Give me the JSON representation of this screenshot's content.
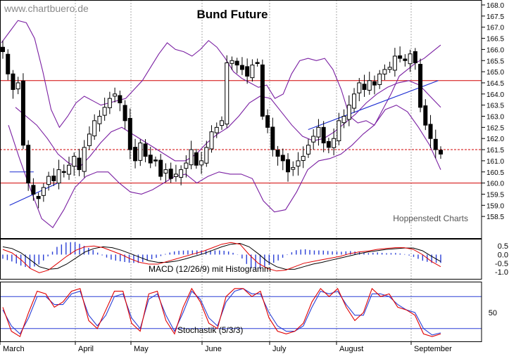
{
  "watermark": "www.chartbuero.de",
  "credit": "Hoppenstedt Charts",
  "chart_data": [
    {
      "type": "candlestick",
      "title": "Bund Future",
      "x_labels": [
        "March",
        "April",
        "May",
        "June",
        "July",
        "August",
        "September"
      ],
      "ylim": [
        158.0,
        168.0
      ],
      "y_ticks": [
        "158.5",
        "159.0",
        "159.5",
        "160.0",
        "160.5",
        "161.0",
        "161.5",
        "162.0",
        "162.5",
        "163.0",
        "163.5",
        "164.0",
        "164.5",
        "165.0",
        "165.5",
        "166.0",
        "166.5",
        "167.0",
        "167.5",
        "168.0"
      ],
      "close": [
        165.9,
        164.9,
        164.2,
        164.5,
        161.7,
        160.0,
        159.5,
        159.3,
        159.8,
        160.3,
        160.1,
        160.6,
        160.5,
        160.8,
        161.2,
        160.6,
        161.6,
        162.2,
        162.8,
        163.0,
        163.4,
        163.8,
        164.0,
        163.6,
        162.8,
        161.5,
        161.0,
        161.8,
        161.2,
        160.9,
        161.0,
        160.3,
        160.6,
        160.2,
        160.4,
        160.6,
        160.9,
        161.5,
        160.8,
        161.0,
        161.6,
        162.3,
        162.5,
        162.8,
        165.4,
        165.5,
        165.3,
        165.1,
        164.8,
        165.3,
        165.4,
        163.0,
        162.5,
        161.5,
        161.2,
        161.0,
        160.5,
        160.7,
        161.0,
        161.2,
        161.7,
        162.1,
        162.5,
        161.8,
        161.6,
        162.0,
        162.8,
        163.0,
        163.5,
        164.0,
        164.5,
        164.2,
        164.6,
        164.4,
        164.9,
        165.1,
        165.2,
        165.7,
        165.6,
        165.5,
        165.8,
        165.4,
        163.4,
        162.6,
        162.0,
        161.5,
        161.3
      ],
      "upper_band_approx": [
        166.3,
        166.8,
        167.3,
        167.2,
        166.5,
        165.0,
        163.3,
        162.5,
        163.0,
        163.6,
        163.9,
        163.7,
        163.5,
        163.6,
        163.7,
        163.8,
        164.2,
        164.6,
        165.2,
        165.8,
        166.3,
        166.0,
        165.9,
        165.7,
        166.0,
        166.4,
        166.1,
        165.6,
        165.0,
        164.7,
        164.5,
        164.3,
        164.4,
        163.8,
        164.0,
        164.9,
        165.5,
        165.6,
        165.5,
        165.6,
        165.1,
        164.2,
        163.0,
        162.7,
        162.8,
        162.6,
        163.3,
        164.0,
        164.8,
        165.1,
        165.4,
        165.6,
        165.9,
        166.2
      ],
      "middle_band_approx": [
        163.4,
        163.0,
        162.6,
        162.0,
        161.3,
        160.9,
        160.7,
        161.2,
        161.8,
        162.3,
        162.5,
        162.2,
        161.9,
        161.6,
        161.3,
        161.0,
        161.0,
        161.3,
        161.8,
        162.2,
        162.5,
        163.0,
        163.6,
        163.9,
        163.8,
        163.2,
        162.6,
        162.1,
        161.9,
        162.0,
        162.3,
        162.7,
        163.1,
        163.6,
        164.0,
        164.3,
        164.5,
        164.6,
        164.4,
        163.9,
        163.4
      ],
      "lower_band_approx": [
        162.6,
        161.1,
        159.7,
        158.4,
        158.0,
        158.8,
        159.8,
        160.3,
        160.5,
        160.5,
        160.0,
        159.6,
        159.5,
        159.7,
        160.0,
        160.3,
        160.4,
        160.0,
        160.3,
        160.5,
        160.4,
        160.4,
        160.2,
        159.2,
        158.7,
        158.8,
        159.6,
        160.6,
        161.0,
        161.1,
        161.3,
        161.7,
        162.2,
        162.6,
        163.3,
        163.5,
        163.2,
        162.5,
        161.7,
        160.6
      ],
      "horizontal_lines": [
        {
          "value": 164.6,
          "style": "solid"
        },
        {
          "value": 161.5,
          "style": "dashed"
        },
        {
          "value": 160.0,
          "style": "solid"
        }
      ],
      "trend_lines": [
        {
          "from": [
            0.02,
            160.5
          ],
          "to": [
            0.07,
            160.5
          ]
        },
        {
          "from": [
            0.02,
            159.0
          ],
          "to": [
            0.12,
            160.0
          ]
        },
        {
          "from": [
            0.64,
            162.4
          ],
          "to": [
            0.91,
            164.6
          ]
        }
      ]
    },
    {
      "type": "line",
      "label": "MACD (12/26/9) mit Histogramm",
      "y_ticks": [
        "0.5",
        "0.0",
        "-0.5",
        "-1.0"
      ],
      "ylim": [
        -1.2,
        0.75
      ],
      "macd": [
        0.3,
        0.1,
        -0.3,
        -0.8,
        -1.05,
        -0.9,
        -0.5,
        -0.1,
        0.25,
        0.45,
        0.5,
        0.4,
        0.2,
        0.0,
        -0.25,
        -0.45,
        -0.55,
        -0.55,
        -0.4,
        -0.25,
        -0.1,
        0.05,
        0.2,
        0.4,
        0.6,
        0.7,
        0.6,
        0.0,
        -0.5,
        -0.8,
        -0.95,
        -0.9,
        -0.7,
        -0.5,
        -0.4,
        -0.3,
        -0.2,
        -0.1,
        0.05,
        0.15,
        0.2,
        0.3,
        0.35,
        0.4,
        0.4,
        0.3,
        0.0,
        -0.4,
        -0.7
      ],
      "signal": [
        0.45,
        0.35,
        0.1,
        -0.3,
        -0.7,
        -0.85,
        -0.8,
        -0.55,
        -0.2,
        0.15,
        0.35,
        0.45,
        0.4,
        0.25,
        0.05,
        -0.15,
        -0.35,
        -0.45,
        -0.45,
        -0.38,
        -0.25,
        -0.1,
        0.05,
        0.25,
        0.45,
        0.6,
        0.65,
        0.45,
        0.05,
        -0.4,
        -0.7,
        -0.85,
        -0.85,
        -0.7,
        -0.55,
        -0.45,
        -0.32,
        -0.2,
        -0.08,
        0.05,
        0.15,
        0.22,
        0.3,
        0.34,
        0.38,
        0.38,
        0.22,
        -0.1,
        -0.4
      ]
    },
    {
      "type": "line",
      "label": "Stochastik (5/3/3)",
      "y_ticks": [
        "50"
      ],
      "ylim": [
        0,
        100
      ],
      "levels": [
        80,
        20
      ],
      "fast": [
        60,
        15,
        5,
        50,
        90,
        85,
        60,
        70,
        90,
        95,
        35,
        20,
        55,
        90,
        90,
        30,
        15,
        85,
        90,
        35,
        10,
        60,
        95,
        70,
        30,
        20,
        80,
        95,
        95,
        80,
        90,
        40,
        15,
        10,
        15,
        30,
        70,
        95,
        80,
        95,
        60,
        35,
        50,
        95,
        80,
        85,
        60,
        55,
        45,
        10,
        5,
        10
      ],
      "slow": [
        55,
        25,
        10,
        40,
        80,
        80,
        65,
        65,
        85,
        90,
        45,
        25,
        45,
        80,
        85,
        40,
        20,
        75,
        85,
        45,
        15,
        50,
        90,
        75,
        40,
        25,
        70,
        90,
        95,
        85,
        85,
        50,
        25,
        15,
        15,
        25,
        60,
        90,
        85,
        90,
        65,
        45,
        45,
        85,
        85,
        80,
        65,
        55,
        50,
        20,
        8,
        12
      ]
    }
  ]
}
